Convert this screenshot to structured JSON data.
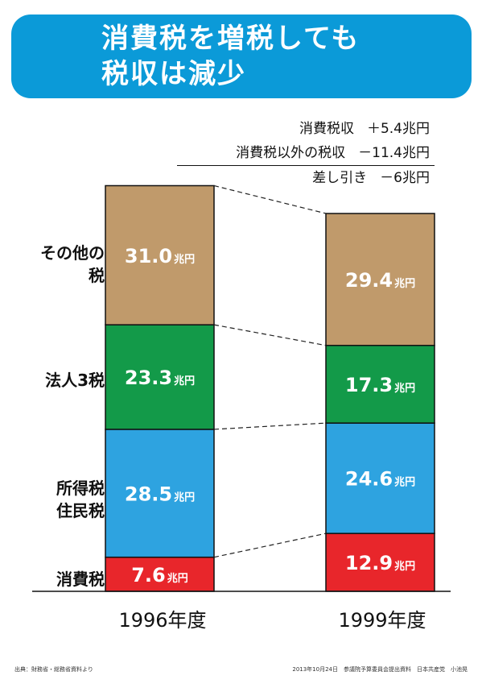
{
  "title": {
    "line1": "消費税を増税しても",
    "line2": "税収は減少"
  },
  "summary": [
    {
      "label": "消費税収",
      "value": "＋5.4兆円"
    },
    {
      "label": "消費税以外の税収",
      "value": "－11.4兆円"
    },
    {
      "label": "差し引き",
      "value": "－6兆円"
    }
  ],
  "row_labels": {
    "other": "その他の\n税",
    "corporate": "法人3税",
    "income": "所得税\n住民税",
    "consumption": "消費税"
  },
  "unit": "兆円",
  "footer": {
    "source": "出典：財務省・総務省資料より",
    "right": "2013年10月24日　参議院予算委員会提出資料　日本共産党　小池晃"
  },
  "chart_data": {
    "type": "bar",
    "stacked": true,
    "categories": [
      "1996年度",
      "1999年度"
    ],
    "series": [
      {
        "key": "consumption",
        "values": [
          7.6,
          12.9
        ],
        "color": "#e8262b"
      },
      {
        "key": "income",
        "values": [
          28.5,
          24.6
        ],
        "color": "#2ea3e0"
      },
      {
        "key": "corporate",
        "values": [
          23.3,
          17.3
        ],
        "color": "#139a49"
      },
      {
        "key": "other",
        "values": [
          31.0,
          29.4
        ],
        "color": "#c09a6b"
      }
    ],
    "value_labels": [
      [
        "7.6",
        "12.9"
      ],
      [
        "28.5",
        "24.6"
      ],
      [
        "23.3",
        "17.3"
      ],
      [
        "31.0",
        "29.4"
      ]
    ]
  }
}
